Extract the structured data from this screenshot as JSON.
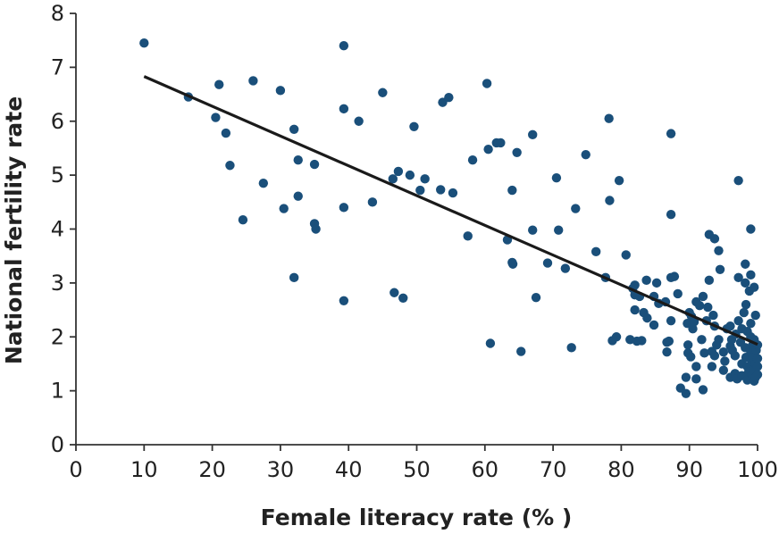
{
  "chart_data": {
    "type": "scatter",
    "title": "",
    "xlabel": "Female literacy rate (% )",
    "ylabel": "National fertility rate",
    "xlim": [
      0,
      100
    ],
    "ylim": [
      0,
      8
    ],
    "x_ticks": [
      "0",
      "10",
      "20",
      "30",
      "40",
      "50",
      "60",
      "70",
      "80",
      "90",
      "100"
    ],
    "y_ticks": [
      "0",
      "1",
      "2",
      "3",
      "4",
      "5",
      "6",
      "7",
      "8"
    ],
    "grid": false,
    "point_color": "#1a4f7a",
    "line_color": "#1a1a1a",
    "trendline": {
      "x": [
        10,
        100
      ],
      "y": [
        6.83,
        1.86
      ]
    },
    "points": [
      [
        10,
        7.45
      ],
      [
        16.5,
        6.45
      ],
      [
        20.5,
        6.07
      ],
      [
        21,
        6.68
      ],
      [
        22,
        5.78
      ],
      [
        22.6,
        5.18
      ],
      [
        24.5,
        4.17
      ],
      [
        26,
        6.75
      ],
      [
        27.5,
        4.85
      ],
      [
        30,
        6.57
      ],
      [
        30.5,
        4.38
      ],
      [
        32,
        5.85
      ],
      [
        32,
        3.1
      ],
      [
        32.6,
        5.28
      ],
      [
        32.6,
        4.61
      ],
      [
        35,
        4.1
      ],
      [
        35,
        5.2
      ],
      [
        35.2,
        4.0
      ],
      [
        39.3,
        7.4
      ],
      [
        39.3,
        6.23
      ],
      [
        39.3,
        4.4
      ],
      [
        39.3,
        2.67
      ],
      [
        41.5,
        6.0
      ],
      [
        43.5,
        4.5
      ],
      [
        45,
        6.53
      ],
      [
        46.5,
        4.93
      ],
      [
        46.7,
        2.82
      ],
      [
        47.3,
        5.07
      ],
      [
        48,
        2.72
      ],
      [
        49,
        5.0
      ],
      [
        49.6,
        5.9
      ],
      [
        50.5,
        4.72
      ],
      [
        51.2,
        4.93
      ],
      [
        53.5,
        4.73
      ],
      [
        53.8,
        6.35
      ],
      [
        54.7,
        6.44
      ],
      [
        55.3,
        4.67
      ],
      [
        57.5,
        3.87
      ],
      [
        58.2,
        5.28
      ],
      [
        60.3,
        6.7
      ],
      [
        60.5,
        5.48
      ],
      [
        60.8,
        1.88
      ],
      [
        61.7,
        5.6
      ],
      [
        62.3,
        5.6
      ],
      [
        63.3,
        3.8
      ],
      [
        64,
        4.72
      ],
      [
        64,
        3.38
      ],
      [
        64.1,
        3.35
      ],
      [
        64.7,
        5.42
      ],
      [
        65.3,
        1.73
      ],
      [
        67,
        5.75
      ],
      [
        67,
        3.98
      ],
      [
        67.5,
        2.73
      ],
      [
        69.2,
        3.37
      ],
      [
        70.5,
        4.95
      ],
      [
        70.8,
        3.98
      ],
      [
        71.8,
        3.27
      ],
      [
        72.7,
        1.8
      ],
      [
        73.3,
        4.38
      ],
      [
        74.8,
        5.38
      ],
      [
        76.3,
        3.58
      ],
      [
        77.7,
        3.1
      ],
      [
        78.2,
        6.05
      ],
      [
        78.3,
        4.53
      ],
      [
        78.7,
        1.93
      ],
      [
        79.3,
        2.0
      ],
      [
        79.7,
        4.9
      ],
      [
        80.7,
        3.52
      ],
      [
        81.3,
        1.95
      ],
      [
        81.7,
        2.9
      ],
      [
        82,
        2.96
      ],
      [
        82,
        2.78
      ],
      [
        82,
        2.5
      ],
      [
        82.3,
        1.92
      ],
      [
        82.7,
        2.75
      ],
      [
        83,
        1.93
      ],
      [
        83.3,
        2.45
      ],
      [
        83.7,
        3.05
      ],
      [
        83.8,
        2.35
      ],
      [
        84.8,
        2.22
      ],
      [
        84.8,
        2.75
      ],
      [
        85.2,
        3.0
      ],
      [
        85.5,
        2.62
      ],
      [
        86.5,
        2.65
      ],
      [
        86.7,
        1.9
      ],
      [
        86.7,
        1.72
      ],
      [
        87,
        1.92
      ],
      [
        87.3,
        3.1
      ],
      [
        87.3,
        2.3
      ],
      [
        87.3,
        5.77
      ],
      [
        87.3,
        4.27
      ],
      [
        87.8,
        3.12
      ],
      [
        88.3,
        2.8
      ],
      [
        88.7,
        1.05
      ],
      [
        89.5,
        0.95
      ],
      [
        89.5,
        1.25
      ],
      [
        89.7,
        2.25
      ],
      [
        89.8,
        1.85
      ],
      [
        89.8,
        1.7
      ],
      [
        90,
        2.45
      ],
      [
        90.2,
        1.63
      ],
      [
        90.3,
        2.38
      ],
      [
        90.5,
        2.15
      ],
      [
        90.7,
        2.28
      ],
      [
        91,
        2.65
      ],
      [
        91,
        1.22
      ],
      [
        91,
        1.45
      ],
      [
        91.5,
        2.58
      ],
      [
        91.8,
        1.95
      ],
      [
        92,
        1.02
      ],
      [
        92,
        2.75
      ],
      [
        92.2,
        1.7
      ],
      [
        92.5,
        2.3
      ],
      [
        92.7,
        2.55
      ],
      [
        92.9,
        3.05
      ],
      [
        92.9,
        3.9
      ],
      [
        93.3,
        1.73
      ],
      [
        93.3,
        1.45
      ],
      [
        93.5,
        2.4
      ],
      [
        93.7,
        2.2
      ],
      [
        93.7,
        3.82
      ],
      [
        93.7,
        1.65
      ],
      [
        94,
        1.85
      ],
      [
        94.3,
        3.6
      ],
      [
        94.3,
        1.95
      ],
      [
        94.5,
        3.25
      ],
      [
        95,
        1.72
      ],
      [
        95,
        1.38
      ],
      [
        95.2,
        1.55
      ],
      [
        95.5,
        2.15
      ],
      [
        96,
        2.2
      ],
      [
        96,
        1.83
      ],
      [
        96,
        1.25
      ],
      [
        96.2,
        1.95
      ],
      [
        96.3,
        1.75
      ],
      [
        96.7,
        1.65
      ],
      [
        96.7,
        1.32
      ],
      [
        96.8,
        2.05
      ],
      [
        97,
        1.22
      ],
      [
        97.2,
        2.3
      ],
      [
        97.2,
        3.1
      ],
      [
        97.2,
        4.9
      ],
      [
        97.5,
        1.9
      ],
      [
        97.7,
        1.5
      ],
      [
        97.7,
        1.28
      ],
      [
        97.7,
        2.15
      ],
      [
        98,
        2.45
      ],
      [
        98.2,
        1.8
      ],
      [
        98.2,
        3.35
      ],
      [
        98.2,
        3.0
      ],
      [
        98.3,
        1.62
      ],
      [
        98.3,
        2.6
      ],
      [
        98.5,
        2.1
      ],
      [
        98.5,
        1.45
      ],
      [
        98.5,
        1.2
      ],
      [
        98.7,
        1.35
      ],
      [
        98.8,
        2.85
      ],
      [
        99,
        1.72
      ],
      [
        99,
        2.0
      ],
      [
        99,
        2.25
      ],
      [
        99,
        4.0
      ],
      [
        99,
        3.15
      ],
      [
        99.2,
        1.55
      ],
      [
        99.2,
        1.3
      ],
      [
        99.3,
        1.85
      ],
      [
        99.3,
        1.62
      ],
      [
        99.5,
        1.95
      ],
      [
        99.5,
        1.18
      ],
      [
        99.5,
        2.92
      ],
      [
        99.5,
        1.4
      ],
      [
        99.7,
        1.5
      ],
      [
        99.7,
        1.25
      ],
      [
        99.7,
        2.4
      ],
      [
        99.8,
        1.75
      ],
      [
        100,
        1.45
      ],
      [
        100,
        1.3
      ],
      [
        100,
        1.6
      ],
      [
        100,
        1.85
      ]
    ]
  }
}
